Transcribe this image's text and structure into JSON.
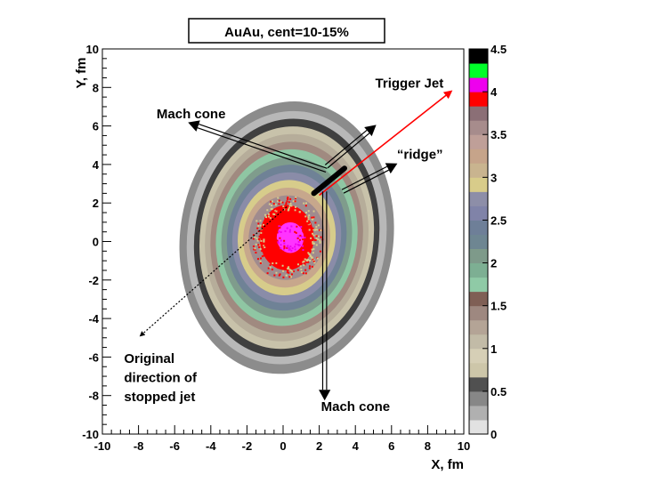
{
  "chart_data": {
    "type": "heatmap",
    "title": "AuAu, cent=10-15%",
    "xlabel": "X, fm",
    "ylabel": "Y, fm",
    "xlim": [
      -10,
      10
    ],
    "ylim": [
      -10,
      10
    ],
    "x_ticks": [
      "-10",
      "-8",
      "-6",
      "-4",
      "-2",
      "0",
      "2",
      "4",
      "6",
      "8",
      "10"
    ],
    "y_ticks": [
      "-10",
      "-8",
      "-6",
      "-4",
      "-2",
      "0",
      "2",
      "4",
      "6",
      "8",
      "10"
    ],
    "x_tick_values": [
      -10,
      -8,
      -6,
      -4,
      -2,
      0,
      2,
      4,
      6,
      8,
      10
    ],
    "y_tick_values": [
      -10,
      -8,
      -6,
      -4,
      -2,
      0,
      2,
      4,
      6,
      8,
      10
    ],
    "colorbar": {
      "range": [
        0,
        4.5
      ],
      "tick_labels": [
        "0",
        "0.5",
        "1",
        "1.5",
        "2",
        "2.5",
        "3",
        "3.5",
        "4",
        "4.5"
      ],
      "tick_values": [
        0,
        0.5,
        1,
        1.5,
        2,
        2.5,
        3,
        3.5,
        4,
        4.5
      ],
      "colors": [
        "#e2e2e2",
        "#b0b0b0",
        "#878787",
        "#505050",
        "#cdc6a9",
        "#d6cfb6",
        "#c2bba7",
        "#b4a496",
        "#9e8880",
        "#7f5f55",
        "#8fcaa6",
        "#7daf93",
        "#7e9a8a",
        "#6e8692",
        "#6e7f98",
        "#8083a8",
        "#8d8ea8",
        "#d8cc8a",
        "#c9b48f",
        "#c6a48a",
        "#bf9f98",
        "#a78c8c",
        "#8b6f76",
        "#ff0000",
        "#ee00ee",
        "#00ff2a",
        "#000000"
      ]
    },
    "contour_bands": [
      {
        "x_half_width": 5.9,
        "y_half_height": 7.1,
        "color": "#8c8c8c"
      },
      {
        "x_half_width": 5.5,
        "y_half_height": 6.6,
        "color": "#b8b8b8"
      },
      {
        "x_half_width": 5.1,
        "y_half_height": 6.2,
        "color": "#404040"
      },
      {
        "x_half_width": 4.8,
        "y_half_height": 5.8,
        "color": "#c8c2aa"
      },
      {
        "x_half_width": 4.5,
        "y_half_height": 5.4,
        "color": "#b6ad9a"
      },
      {
        "x_half_width": 4.2,
        "y_half_height": 5.0,
        "color": "#a08a80"
      },
      {
        "x_half_width": 3.9,
        "y_half_height": 4.6,
        "color": "#8fc6a3"
      },
      {
        "x_half_width": 3.6,
        "y_half_height": 4.2,
        "color": "#7f9c8c"
      },
      {
        "x_half_width": 3.3,
        "y_half_height": 3.8,
        "color": "#6f8296"
      },
      {
        "x_half_width": 3.0,
        "y_half_height": 3.4,
        "color": "#8a8ca8"
      },
      {
        "x_half_width": 2.7,
        "y_half_height": 3.0,
        "color": "#d7cc8b"
      },
      {
        "x_half_width": 2.4,
        "y_half_height": 2.6,
        "color": "#c7a78c"
      },
      {
        "x_half_width": 2.1,
        "y_half_height": 2.2,
        "color": "#a08b8e"
      }
    ],
    "core_region": {
      "x_half_width": 1.5,
      "y_half_height": 1.7,
      "color": "#ff0000"
    },
    "center_region": {
      "x_half_width": 0.75,
      "y_half_height": 0.8,
      "color": "#ff33ff"
    },
    "annotations": [
      {
        "text": "Trigger Jet",
        "x": 5.1,
        "y": 8.0
      },
      {
        "text": "Mach cone",
        "x": -7.0,
        "y": 6.4
      },
      {
        "text": "“ridge”",
        "x": 6.3,
        "y": 4.3
      },
      {
        "text": "Original",
        "x": -8.8,
        "y": -6.3
      },
      {
        "text": "direction of",
        "x": -8.8,
        "y": -7.3
      },
      {
        "text": "stopped jet",
        "x": -8.8,
        "y": -8.3
      },
      {
        "text": "Mach cone",
        "x": 2.1,
        "y": -8.8
      }
    ],
    "arrows": [
      {
        "name": "trigger-jet-arrow",
        "from": [
          2.0,
          2.4
        ],
        "to": [
          9.3,
          7.8
        ],
        "style": "red"
      },
      {
        "name": "original-direction-arrow",
        "from": [
          0.2,
          1.8
        ],
        "to": [
          -7.9,
          -4.9
        ],
        "style": "dotted"
      },
      {
        "name": "mach-cone-upper-arrow",
        "from": [
          2.4,
          3.7
        ],
        "to": [
          -4.7,
          6.0
        ],
        "style": "double"
      },
      {
        "name": "mach-cone-upper-right-arrow",
        "from": [
          2.4,
          3.9
        ],
        "to": [
          4.7,
          5.7
        ],
        "style": "double"
      },
      {
        "name": "ridge-arrow",
        "from": [
          3.3,
          2.6
        ],
        "to": [
          5.8,
          3.8
        ],
        "style": "double"
      },
      {
        "name": "mach-cone-lower-arrow",
        "from": [
          2.3,
          2.6
        ],
        "to": [
          2.3,
          -7.7
        ],
        "style": "double"
      }
    ],
    "jet_marker": {
      "from": [
        1.7,
        2.5
      ],
      "to": [
        3.4,
        3.8
      ]
    },
    "grid": false,
    "legend": "none"
  }
}
